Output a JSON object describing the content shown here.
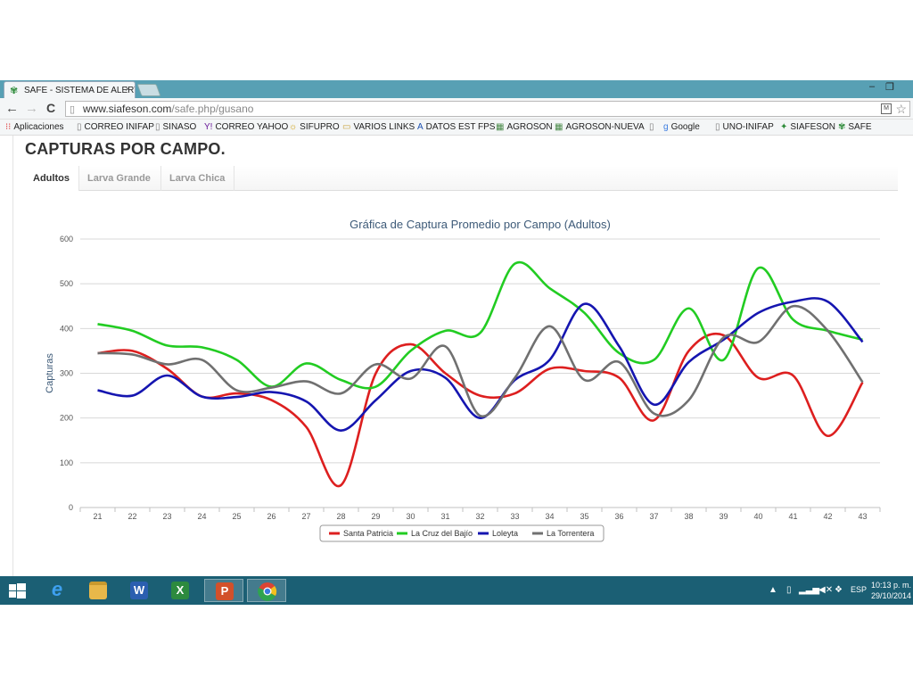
{
  "browser": {
    "tab_title": "SAFE - SISTEMA DE ALERT",
    "tab_close": "×",
    "url_domain": "www.siafeson.com",
    "url_path": "/safe.php/gusano",
    "nav": {
      "back": "←",
      "forward": "→",
      "reload": "C"
    },
    "window_controls": {
      "minimize": "–",
      "restore": "❐"
    }
  },
  "bookmarks": [
    {
      "label": "Aplicaciones",
      "icon": "apps-grid-icon"
    },
    {
      "label": "CORREO INIFAP",
      "icon": "page-icon"
    },
    {
      "label": "SINASO",
      "icon": "page-icon"
    },
    {
      "label": "CORREO YAHOO",
      "icon": "yahoo-icon"
    },
    {
      "label": "SIFUPRO",
      "icon": "sifupro-icon"
    },
    {
      "label": "VARIOS LINKS",
      "icon": "folder-icon"
    },
    {
      "label": "DATOS EST FPS",
      "icon": "datos-icon"
    },
    {
      "label": "AGROSON",
      "icon": "chart-icon"
    },
    {
      "label": "AGROSON-NUEVA",
      "icon": "chart-icon"
    },
    {
      "label": "",
      "icon": "page-icon"
    },
    {
      "label": "Google",
      "icon": "google-icon"
    },
    {
      "label": "UNO-INIFAP",
      "icon": "page-icon"
    },
    {
      "label": "SIAFESON",
      "icon": "siafeson-icon"
    },
    {
      "label": "SAFE",
      "icon": "safe-icon"
    }
  ],
  "page": {
    "title": "CAPTURAS POR CAMPO.",
    "tabs": [
      {
        "label": "Adultos",
        "active": true
      },
      {
        "label": "Larva Grande",
        "active": false
      },
      {
        "label": "Larva Chica",
        "active": false
      }
    ]
  },
  "chart_data": {
    "type": "line",
    "title": "Gráfica de Captura Promedio por Campo (Adultos)",
    "xlabel": "",
    "ylabel": "Capturas",
    "ylim": [
      0,
      600
    ],
    "yticks": [
      0,
      100,
      200,
      300,
      400,
      500,
      600
    ],
    "categories": [
      "21",
      "22",
      "23",
      "24",
      "25",
      "26",
      "27",
      "28",
      "29",
      "30",
      "31",
      "32",
      "33",
      "34",
      "35",
      "36",
      "37",
      "38",
      "39",
      "40",
      "41",
      "42",
      "43"
    ],
    "grid": true,
    "legend_position": "bottom",
    "series": [
      {
        "name": "Santa Patricia",
        "color": "#dd1f1f",
        "values": [
          345,
          350,
          310,
          248,
          255,
          240,
          180,
          50,
          300,
          365,
          300,
          250,
          255,
          310,
          305,
          290,
          195,
          350,
          385,
          290,
          295,
          160,
          280
        ]
      },
      {
        "name": "La Cruz del Bajío",
        "color": "#22cc22",
        "values": [
          410,
          395,
          362,
          358,
          330,
          270,
          322,
          285,
          270,
          350,
          395,
          390,
          545,
          490,
          435,
          345,
          330,
          445,
          330,
          535,
          420,
          395,
          375
        ]
      },
      {
        "name": "Loleyta",
        "color": "#1515b0",
        "values": [
          262,
          250,
          295,
          248,
          247,
          258,
          237,
          172,
          240,
          305,
          290,
          200,
          285,
          330,
          455,
          360,
          230,
          325,
          375,
          435,
          460,
          460,
          370
        ]
      },
      {
        "name": "La Torrentera",
        "color": "#707070",
        "values": [
          345,
          342,
          320,
          330,
          262,
          268,
          282,
          255,
          320,
          288,
          360,
          205,
          290,
          405,
          285,
          325,
          210,
          240,
          380,
          370,
          450,
          395,
          280
        ]
      }
    ]
  },
  "taskbar": {
    "apps": [
      {
        "name": "start-button",
        "icon": "windows-logo-icon"
      },
      {
        "name": "ie",
        "icon": "internet-explorer-icon",
        "glyph": "e",
        "color": "#2a7fd8"
      },
      {
        "name": "explorer",
        "icon": "file-explorer-icon",
        "glyph": "",
        "color": "#e8b84a"
      },
      {
        "name": "word",
        "icon": "word-icon",
        "glyph": "W",
        "color": "#2b5fb0"
      },
      {
        "name": "excel",
        "icon": "excel-icon",
        "glyph": "X",
        "color": "#2d8a3e"
      },
      {
        "name": "powerpoint",
        "icon": "powerpoint-icon",
        "glyph": "P",
        "color": "#d2502a"
      },
      {
        "name": "chrome",
        "icon": "chrome-icon",
        "glyph": "",
        "color": "#dd4433"
      }
    ],
    "language": "ESP",
    "time": "10:13 p. m.",
    "date": "29/10/2014"
  }
}
